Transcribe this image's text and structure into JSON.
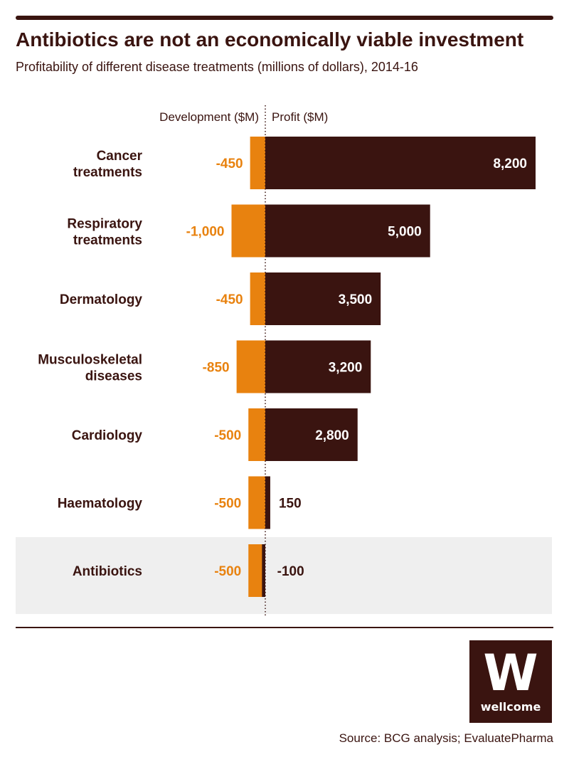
{
  "header": {
    "title": "Antibiotics are not an economically viable investment",
    "subtitle": "Profitability of different disease treatments (millions of dollars), 2014-16"
  },
  "chart_data": {
    "type": "bar",
    "orientation": "horizontal-diverging",
    "title": "Antibiotics are not an economically viable investment",
    "subtitle": "Profitability of different disease treatments (millions of dollars), 2014-16",
    "left_heading": "Development ($M)",
    "right_heading": "Profit ($M)",
    "categories": [
      [
        "Cancer",
        "treatments"
      ],
      [
        "Respiratory",
        "treatments"
      ],
      [
        "Dermatology"
      ],
      [
        "Musculoskeletal",
        "diseases"
      ],
      [
        "Cardiology"
      ],
      [
        "Haematology"
      ],
      [
        "Antibiotics"
      ]
    ],
    "series": [
      {
        "name": "Development ($M)",
        "values": [
          -450,
          -1000,
          -450,
          -850,
          -500,
          -500,
          -500
        ],
        "labels": [
          "-450",
          "-1,000",
          "-450",
          "-850",
          "-500",
          "-500",
          "-500"
        ],
        "color": "#e8820f"
      },
      {
        "name": "Profit ($M)",
        "values": [
          8200,
          5000,
          3500,
          3200,
          2800,
          150,
          -100
        ],
        "labels": [
          "8,200",
          "5,000",
          "3,500",
          "3,200",
          "2,800",
          "150",
          "-100"
        ],
        "color": "#3a1410"
      }
    ],
    "highlight_category": "Antibiotics",
    "highlight_color": "#efefef",
    "zero_line": "dotted",
    "grid": false
  },
  "logo": {
    "mark": "W",
    "text": "wellcome"
  },
  "footer": {
    "source": "Source: BCG analysis; EvaluatePharma"
  }
}
